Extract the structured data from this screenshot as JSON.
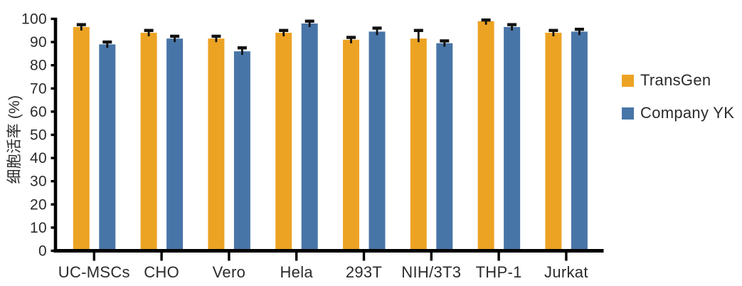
{
  "chart_data": {
    "type": "bar",
    "title": "",
    "ylabel": "细胞活率 (%)",
    "xlabel": "",
    "ylim": [
      0,
      100
    ],
    "yticks": [
      0,
      10,
      20,
      30,
      40,
      50,
      60,
      70,
      80,
      90,
      100
    ],
    "grid": false,
    "legend_position": "right",
    "categories": [
      "UC-MSCs",
      "CHO",
      "Vero",
      "Hela",
      "293T",
      "NIH/3T3",
      "THP-1",
      "Jurkat"
    ],
    "series": [
      {
        "name": "TransGen",
        "color": "#ECA324",
        "values": [
          96.5,
          94,
          91.5,
          94,
          91,
          91.5,
          99,
          94
        ],
        "errors": [
          1,
          1,
          1,
          1,
          1,
          3.5,
          0.5,
          1
        ]
      },
      {
        "name": "Company YK",
        "color": "#4875A7",
        "values": [
          89,
          91.5,
          86,
          98,
          94.5,
          89.5,
          96.5,
          94.5
        ],
        "errors": [
          1,
          1,
          1.5,
          1,
          1.5,
          1,
          1,
          1
        ]
      }
    ],
    "error_bar_color": "#111111",
    "axis_color": "#000000",
    "text_color": "#2b2b2b"
  }
}
